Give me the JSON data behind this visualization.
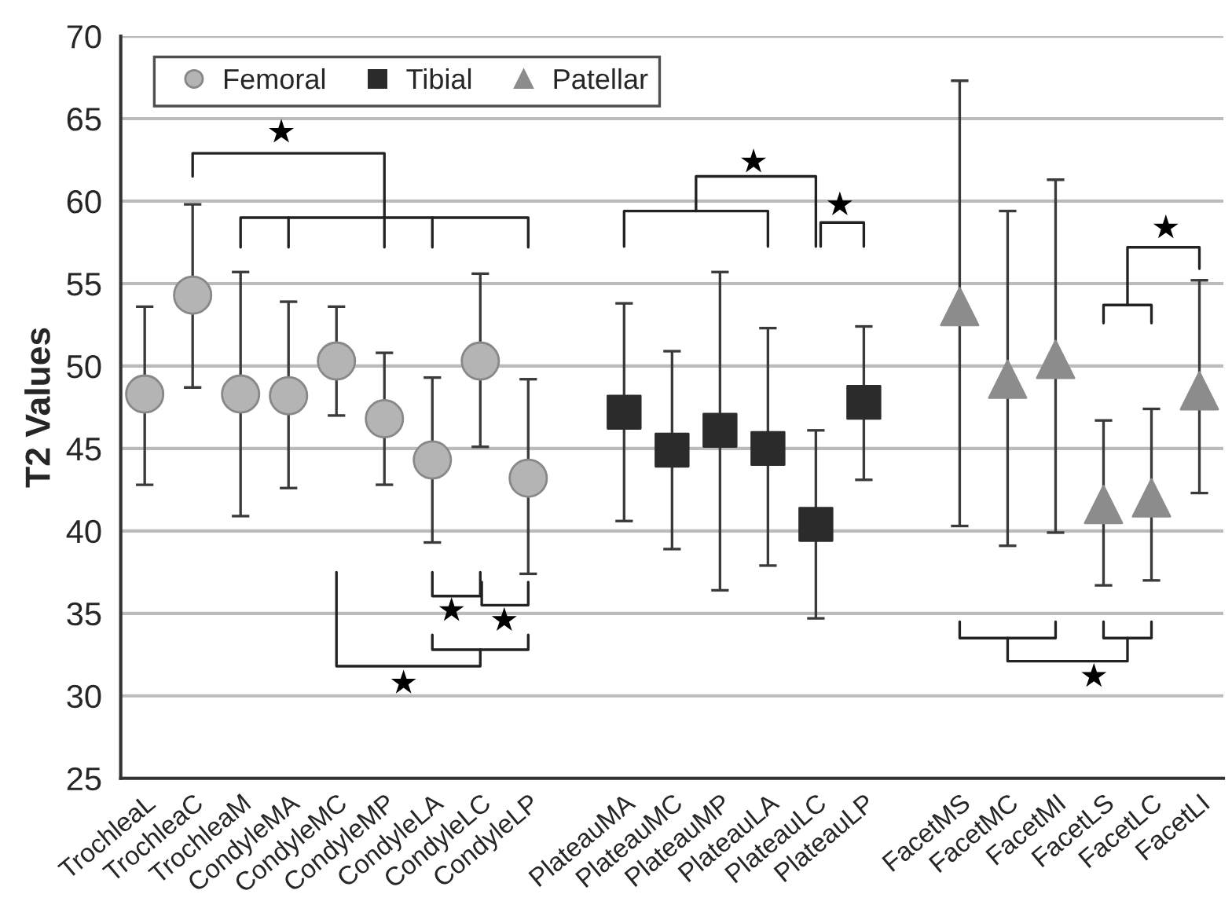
{
  "chart_data": {
    "type": "scatter",
    "ylabel": "T2 Values",
    "categories": [
      "TrochleaL",
      "TrochleaC",
      "TrochleaM",
      "CondyleMA",
      "CondyleMC",
      "CondyleMP",
      "CondyleLA",
      "CondyleLC",
      "CondyleLP",
      null,
      "PlateauMA",
      "PlateauMC",
      "PlateauMP",
      "PlateauLA",
      "PlateauLC",
      "PlateauLP",
      null,
      "FacetMS",
      "FacetMC",
      "FacetMI",
      "FacetLS",
      "FacetLC",
      "FacetLI"
    ],
    "series": [
      {
        "name": "Femoral",
        "color": "#b4b4b4",
        "marker": "circle",
        "values": [
          48.3,
          54.3,
          48.3,
          48.2,
          50.3,
          46.8,
          44.3,
          50.3,
          43.2,
          null,
          null,
          null,
          null,
          null,
          null,
          null,
          null,
          null,
          null,
          null,
          null,
          null,
          null
        ],
        "errors": [
          [
            42.8,
            53.6
          ],
          [
            48.7,
            59.8
          ],
          [
            40.9,
            55.7
          ],
          [
            42.6,
            53.9
          ],
          [
            47.0,
            53.6
          ],
          [
            42.8,
            50.8
          ],
          [
            39.3,
            49.3
          ],
          [
            45.1,
            55.6
          ],
          [
            37.4,
            49.2
          ],
          null,
          null,
          null,
          null,
          null,
          null,
          null,
          null,
          null,
          null,
          null,
          null,
          null,
          null
        ]
      },
      {
        "name": "Tibial",
        "color": "#2b2b2b",
        "marker": "square",
        "values": [
          null,
          null,
          null,
          null,
          null,
          null,
          null,
          null,
          null,
          null,
          47.2,
          44.9,
          46.1,
          45.0,
          40.4,
          47.8,
          null,
          null,
          null,
          null,
          null,
          null,
          null
        ],
        "errors": [
          null,
          null,
          null,
          null,
          null,
          null,
          null,
          null,
          null,
          null,
          [
            40.6,
            53.8
          ],
          [
            38.9,
            50.9
          ],
          [
            36.4,
            55.7
          ],
          [
            37.9,
            52.3
          ],
          [
            34.7,
            46.1
          ],
          [
            43.1,
            52.4
          ],
          null,
          null,
          null,
          null,
          null,
          null,
          null
        ]
      },
      {
        "name": "Patellar",
        "color": "#8c8c8c",
        "marker": "triangle",
        "values": [
          null,
          null,
          null,
          null,
          null,
          null,
          null,
          null,
          null,
          null,
          null,
          null,
          null,
          null,
          null,
          null,
          null,
          53.6,
          49.2,
          50.4,
          41.6,
          42.0,
          48.5
        ],
        "errors": [
          null,
          null,
          null,
          null,
          null,
          null,
          null,
          null,
          null,
          null,
          null,
          null,
          null,
          null,
          null,
          null,
          null,
          [
            40.3,
            67.3
          ],
          [
            39.1,
            59.4
          ],
          [
            39.9,
            61.3
          ],
          [
            36.7,
            46.7
          ],
          [
            37.0,
            47.4
          ],
          [
            42.3,
            55.2
          ]
        ]
      }
    ],
    "ylim": [
      25,
      70
    ],
    "yticks": [
      25,
      30,
      35,
      40,
      45,
      50,
      55,
      60,
      65,
      70
    ],
    "grid": "y",
    "legend": "top left",
    "annotations": [
      "★",
      "★",
      "★",
      "★",
      "★",
      "★",
      "★",
      "★"
    ]
  }
}
